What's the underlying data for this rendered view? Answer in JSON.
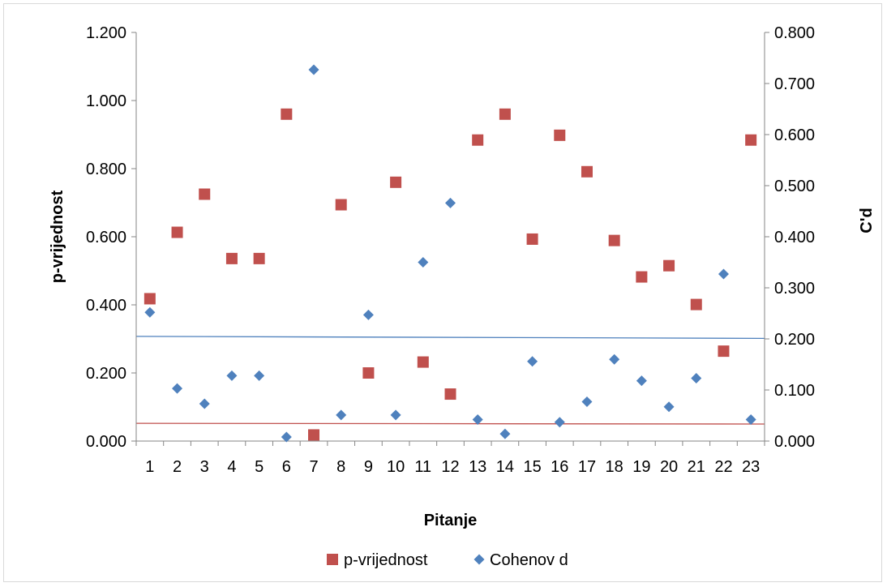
{
  "chart_data": {
    "type": "scatter",
    "categories": [
      "1",
      "2",
      "3",
      "4",
      "5",
      "6",
      "7",
      "8",
      "9",
      "10",
      "11",
      "12",
      "13",
      "14",
      "15",
      "16",
      "17",
      "18",
      "19",
      "20",
      "21",
      "22",
      "23"
    ],
    "xlabel": "Pitanje",
    "ylabel": "p-vrijednost",
    "y2label": "C'd",
    "ylim": [
      0,
      1.2
    ],
    "y2lim": [
      0,
      0.8
    ],
    "yticks": [
      "0.000",
      "0.200",
      "0.400",
      "0.600",
      "0.800",
      "1.000",
      "1.200"
    ],
    "y2ticks": [
      "0.000",
      "0.100",
      "0.200",
      "0.300",
      "0.400",
      "0.500",
      "0.600",
      "0.700",
      "0.800"
    ],
    "series": [
      {
        "name": "p-vrijednost",
        "axis": "left",
        "marker": "square",
        "color": "#c0504d",
        "values": [
          0.418,
          0.613,
          0.725,
          0.536,
          0.536,
          0.96,
          0.018,
          0.694,
          0.2,
          0.76,
          0.232,
          0.138,
          0.884,
          0.96,
          0.593,
          0.898,
          0.791,
          0.589,
          0.482,
          0.515,
          0.401,
          0.264,
          0.884
        ]
      },
      {
        "name": "Cohenov d",
        "axis": "right",
        "marker": "diamond",
        "color": "#4f81bd",
        "values": [
          0.252,
          0.103,
          0.073,
          0.128,
          0.128,
          0.008,
          0.727,
          0.051,
          0.247,
          0.051,
          0.35,
          0.466,
          0.042,
          0.014,
          0.156,
          0.037,
          0.077,
          0.16,
          0.118,
          0.067,
          0.123,
          0.327,
          0.042
        ]
      }
    ],
    "reference_lines": [
      {
        "axis": "left",
        "color": "#c0504d",
        "y_start": 0.052,
        "y_end": 0.05
      },
      {
        "axis": "right",
        "color": "#4f81bd",
        "y_start": 0.205,
        "y_end": 0.201
      }
    ],
    "legend_position": "bottom",
    "grid": false
  }
}
